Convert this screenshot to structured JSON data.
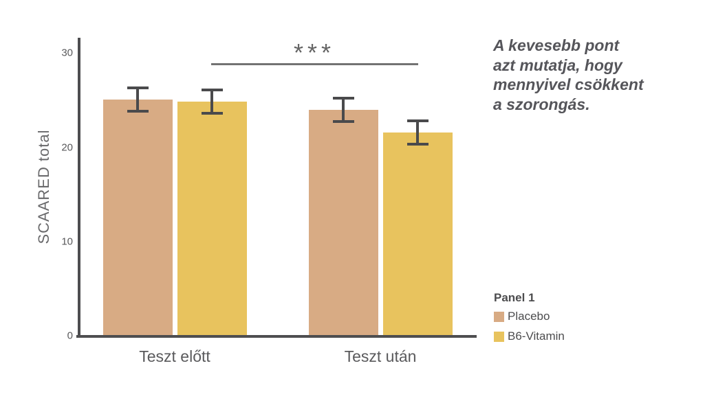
{
  "figure": {
    "background": "#FFFFFF",
    "axis_color": "#4E4E50"
  },
  "chart_data": {
    "type": "bar",
    "title": "",
    "categories": [
      "Teszt előtt",
      "Teszt után"
    ],
    "series": [
      {
        "name": "Placebo",
        "color": "#D8AB84",
        "values": [
          25.0,
          23.9
        ],
        "error_bars": [
          1.4,
          1.4
        ]
      },
      {
        "name": "B6-Vitamin",
        "color": "#E8C35E",
        "values": [
          24.8,
          21.5
        ],
        "error_bars": [
          1.4,
          1.4
        ]
      }
    ],
    "xlabel": "",
    "ylabel": "SCAARED total",
    "ylim": [
      0,
      30
    ],
    "yticks": [
      "0",
      "10",
      "20",
      "30"
    ],
    "grid": false,
    "error_bar_color": "#4A4A4C",
    "legend_position": "right-bottom"
  },
  "significance": {
    "label": "***",
    "connects": [
      "B6-Vitamin / Teszt előtt",
      "B6-Vitamin / Teszt után"
    ]
  },
  "annotation": {
    "lines": [
      "A kevesebb pont",
      "azt mutatja, hogy",
      "mennyivel csökkent",
      "a szorongás."
    ]
  },
  "legend": {
    "title": "Panel 1",
    "items": [
      {
        "label": "Placebo",
        "color": "#D8AB84"
      },
      {
        "label": "B6-Vitamin",
        "color": "#E8C35E"
      }
    ]
  }
}
